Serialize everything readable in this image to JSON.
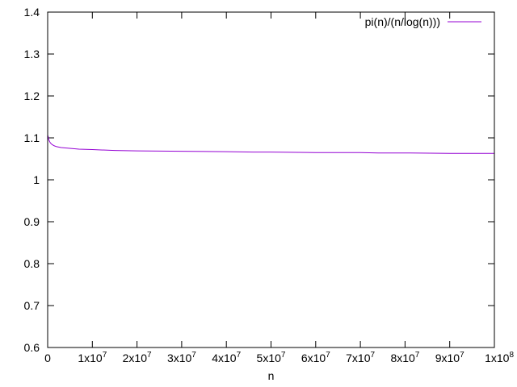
{
  "chart_data": {
    "type": "line",
    "title": "",
    "xlabel": "n",
    "ylabel": "",
    "xlim": [
      0,
      100000000
    ],
    "ylim": [
      0.6,
      1.4
    ],
    "grid": false,
    "legend_position": "top-right",
    "x_ticks": [
      {
        "value": 0,
        "mantissa": "0",
        "exponent": ""
      },
      {
        "value": 10000000,
        "mantissa": "1x10",
        "exponent": "7"
      },
      {
        "value": 20000000,
        "mantissa": "2x10",
        "exponent": "7"
      },
      {
        "value": 30000000,
        "mantissa": "3x10",
        "exponent": "7"
      },
      {
        "value": 40000000,
        "mantissa": "4x10",
        "exponent": "7"
      },
      {
        "value": 50000000,
        "mantissa": "5x10",
        "exponent": "7"
      },
      {
        "value": 60000000,
        "mantissa": "6x10",
        "exponent": "7"
      },
      {
        "value": 70000000,
        "mantissa": "7x10",
        "exponent": "7"
      },
      {
        "value": 80000000,
        "mantissa": "8x10",
        "exponent": "7"
      },
      {
        "value": 90000000,
        "mantissa": "9x10",
        "exponent": "7"
      },
      {
        "value": 100000000,
        "mantissa": "1x10",
        "exponent": "8"
      }
    ],
    "y_ticks": [
      {
        "value": 0.6,
        "label": "0.6"
      },
      {
        "value": 0.7,
        "label": "0.7"
      },
      {
        "value": 0.8,
        "label": "0.8"
      },
      {
        "value": 0.9,
        "label": "0.9"
      },
      {
        "value": 1.0,
        "label": "1"
      },
      {
        "value": 1.1,
        "label": "1.1"
      },
      {
        "value": 1.2,
        "label": "1.2"
      },
      {
        "value": 1.3,
        "label": "1.3"
      },
      {
        "value": 1.4,
        "label": "1.4"
      }
    ],
    "series": [
      {
        "name": "pi(n)/(n/log(n)))",
        "color": "#9400d3",
        "x": [
          100000,
          200000,
          400000,
          600000,
          1000000,
          1500000,
          2000000,
          3000000,
          4000000,
          5000000,
          7000000,
          10000000,
          15000000,
          20000000,
          30000000,
          40000000,
          46000000,
          50000000,
          60000000,
          70000000,
          74000000,
          80000000,
          90000000,
          100000000
        ],
        "y": [
          1.104,
          1.097,
          1.092,
          1.088,
          1.084,
          1.081,
          1.079,
          1.077,
          1.076,
          1.075,
          1.073,
          1.072,
          1.07,
          1.069,
          1.068,
          1.067,
          1.066,
          1.066,
          1.065,
          1.065,
          1.064,
          1.064,
          1.063,
          1.063
        ]
      }
    ]
  }
}
